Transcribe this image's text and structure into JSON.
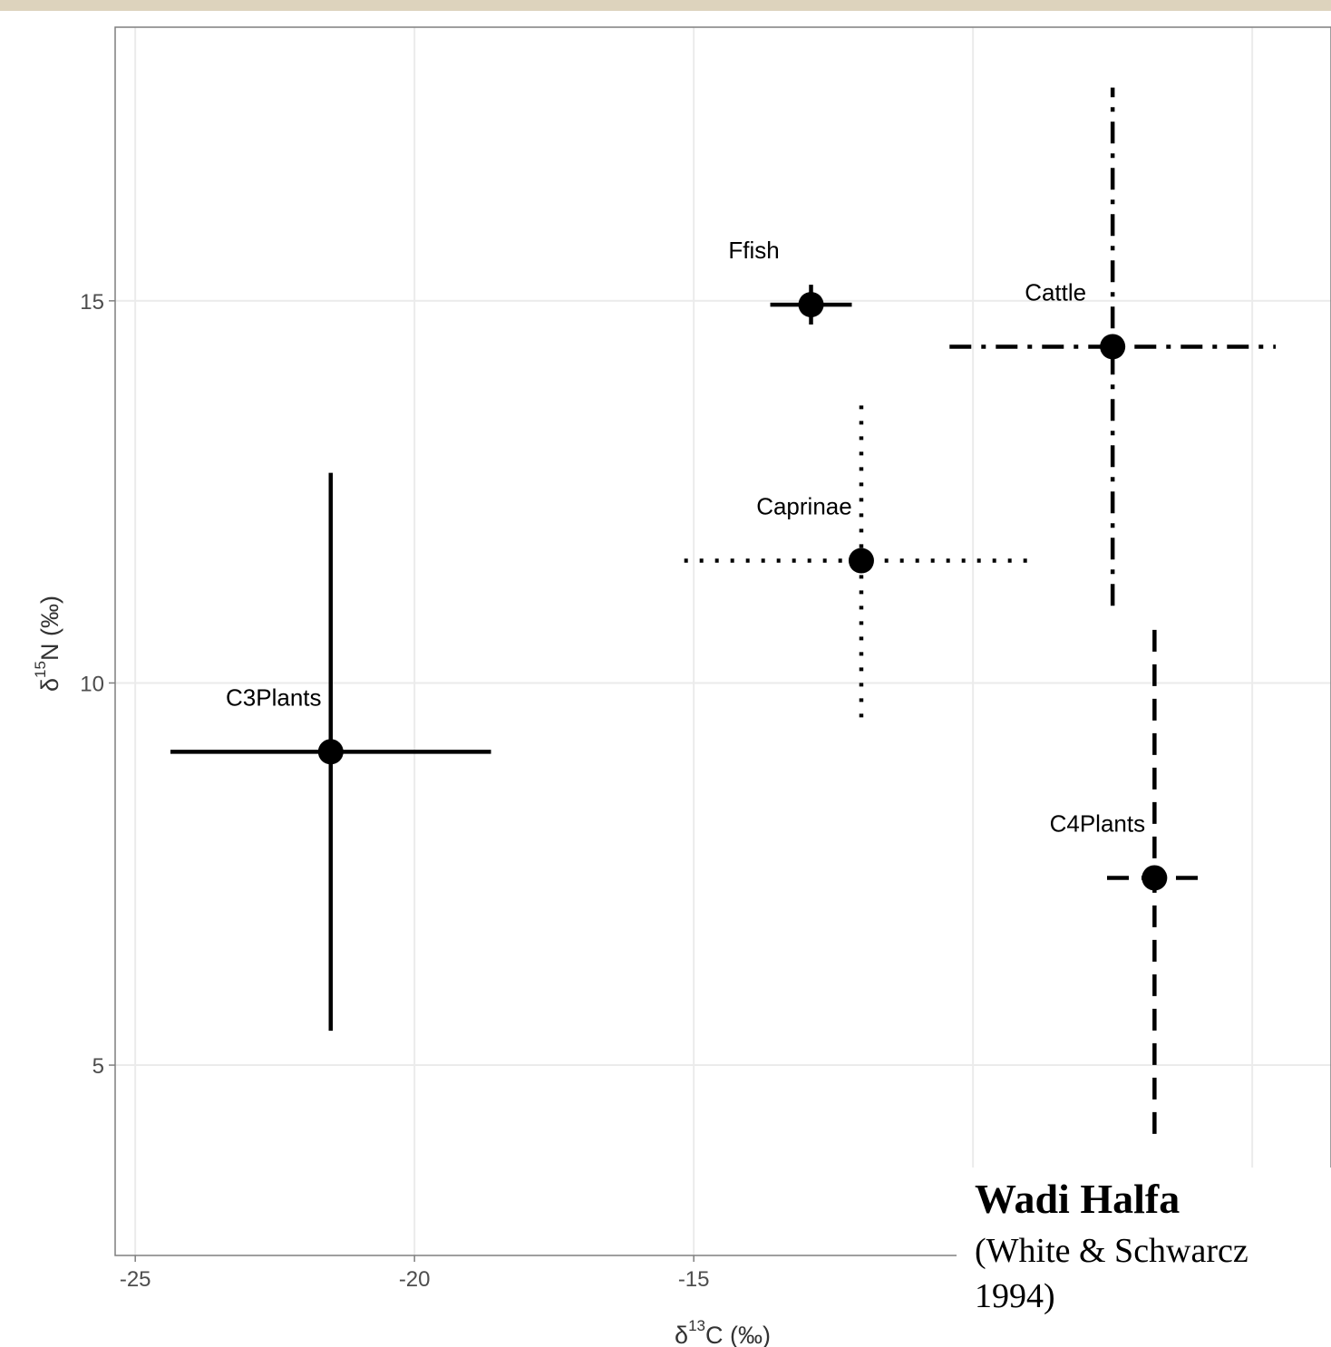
{
  "chart_data": {
    "type": "scatter",
    "xlabel": [
      "δ",
      "13",
      "C (‰)"
    ],
    "ylabel": [
      "δ",
      "15",
      "N (‰)"
    ],
    "xlim": [
      -25.36,
      -3.59
    ],
    "ylim": [
      2.51,
      18.58
    ],
    "xticks": [
      -25,
      -20,
      -15,
      -10,
      -5
    ],
    "yticks": [
      5,
      10,
      15
    ],
    "grid": true,
    "color": "#000000",
    "series": [
      {
        "name": "C3Plants",
        "x": -21.5,
        "y": 9.1,
        "xerr": 2.87,
        "yerr": 3.65,
        "linetype": "solid"
      },
      {
        "name": "Ffish",
        "x": -12.9,
        "y": 14.95,
        "xerr": 0.73,
        "yerr": 0.26,
        "linetype": "solid"
      },
      {
        "name": "Caprinae",
        "x": -12.0,
        "y": 11.6,
        "xerr": 3.17,
        "yerr": 2.05,
        "linetype": "dotted"
      },
      {
        "name": "Cattle",
        "x": -7.5,
        "y": 14.4,
        "xerr": 2.92,
        "yerr": 3.39,
        "linetype": "dotdash"
      },
      {
        "name": "C4Plants",
        "x": -6.75,
        "y": 7.45,
        "xerr": 0.85,
        "yerr": 3.35,
        "linetype": "dashed"
      }
    ],
    "annotation": {
      "title": "Wadi Halfa",
      "lines": [
        "(White & Schwarcz",
        "1994)"
      ]
    }
  }
}
